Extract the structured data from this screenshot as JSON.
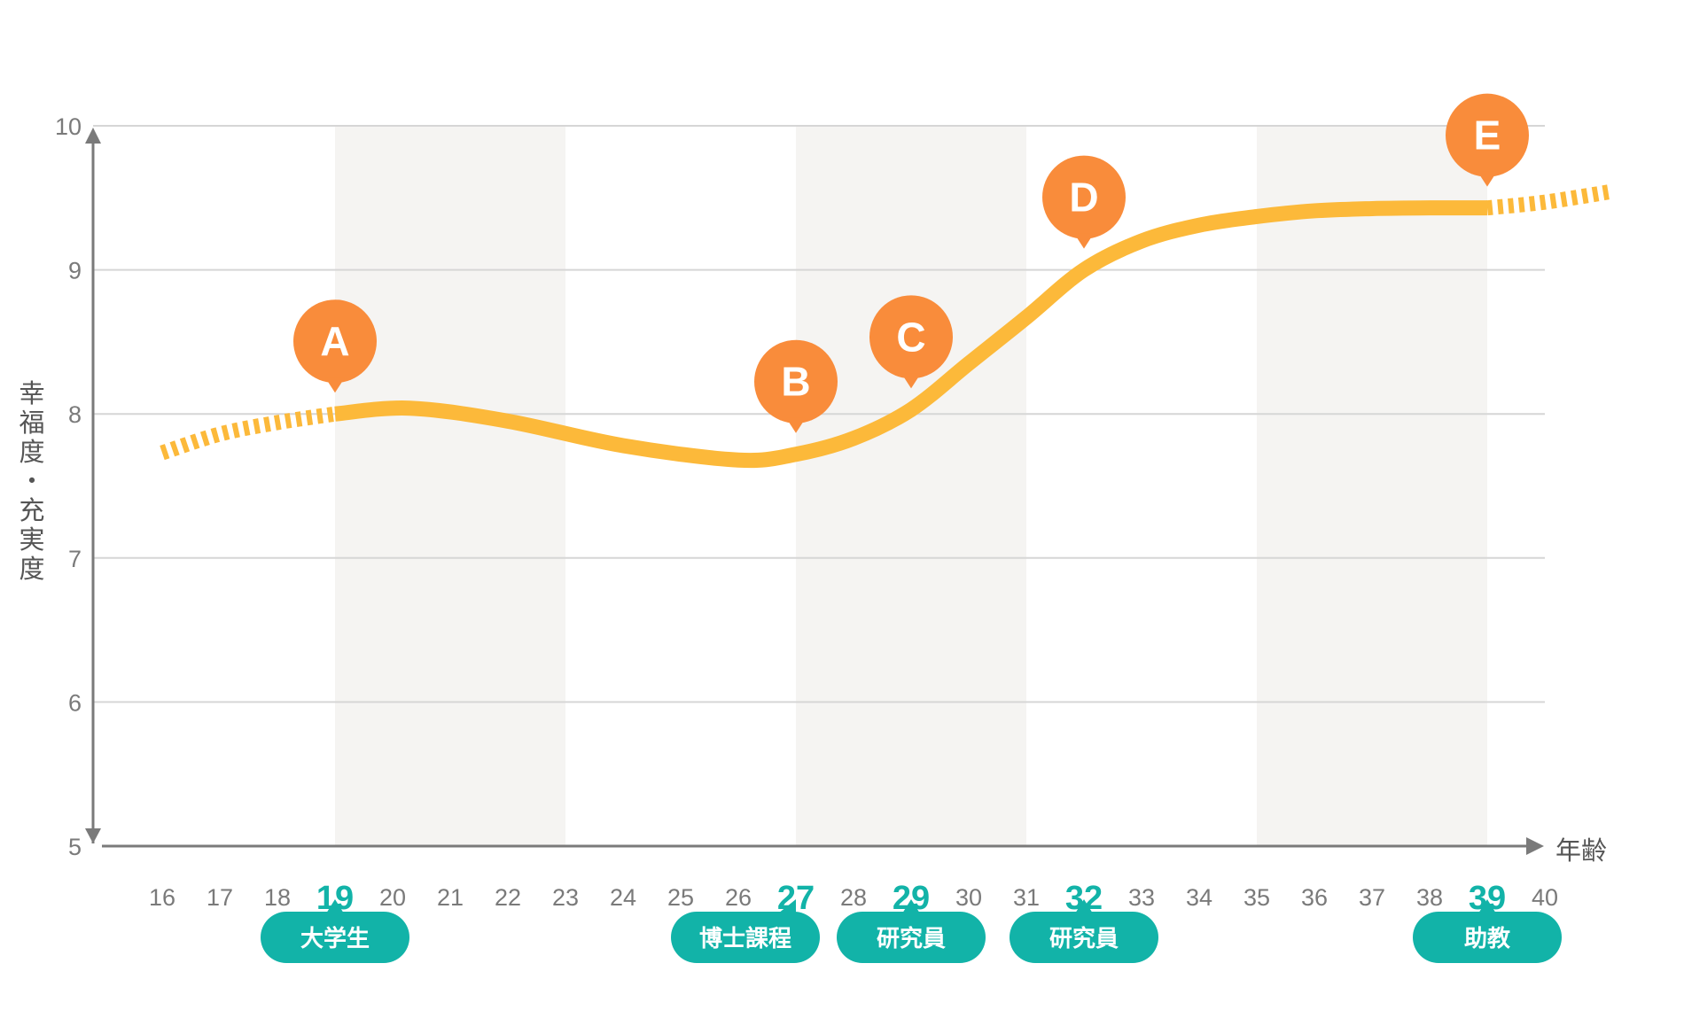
{
  "chart_data": {
    "type": "line",
    "xlabel": "年齢",
    "ylabel": "幸福度・充実度",
    "xlim": [
      16,
      40
    ],
    "ylim": [
      5,
      10
    ],
    "x_ticks": [
      16,
      17,
      18,
      19,
      20,
      21,
      22,
      23,
      24,
      25,
      26,
      27,
      28,
      29,
      30,
      31,
      32,
      33,
      34,
      35,
      36,
      37,
      38,
      39,
      40
    ],
    "y_ticks": [
      5,
      6,
      7,
      8,
      9,
      10
    ],
    "highlighted_ages": [
      19,
      27,
      29,
      32,
      39
    ],
    "shaded_age_bands": [
      [
        19,
        23
      ],
      [
        27,
        31
      ],
      [
        35,
        39
      ]
    ],
    "series": [
      {
        "solid_points": [
          {
            "x": 19,
            "y": 8.0
          },
          {
            "x": 20.3,
            "y": 8.04
          },
          {
            "x": 22,
            "y": 7.95
          },
          {
            "x": 24,
            "y": 7.78
          },
          {
            "x": 26,
            "y": 7.68
          },
          {
            "x": 27,
            "y": 7.72
          },
          {
            "x": 28,
            "y": 7.83
          },
          {
            "x": 29,
            "y": 8.03
          },
          {
            "x": 30,
            "y": 8.35
          },
          {
            "x": 31,
            "y": 8.67
          },
          {
            "x": 32,
            "y": 9.0
          },
          {
            "x": 33,
            "y": 9.2
          },
          {
            "x": 34,
            "y": 9.31
          },
          {
            "x": 35,
            "y": 9.37
          },
          {
            "x": 36,
            "y": 9.41
          },
          {
            "x": 37,
            "y": 9.425
          },
          {
            "x": 38,
            "y": 9.43
          },
          {
            "x": 39,
            "y": 9.43
          }
        ],
        "dashed_before": [
          {
            "x": 16,
            "y": 7.73
          },
          {
            "x": 17,
            "y": 7.86
          },
          {
            "x": 18,
            "y": 7.94
          },
          {
            "x": 19,
            "y": 8.0
          }
        ],
        "dashed_after": [
          {
            "x": 39,
            "y": 9.43
          },
          {
            "x": 40,
            "y": 9.47
          },
          {
            "x": 41.1,
            "y": 9.54
          }
        ]
      }
    ],
    "markers": [
      {
        "letter": "A",
        "x": 19,
        "y": 8.0
      },
      {
        "letter": "B",
        "x": 27,
        "y": 7.72
      },
      {
        "letter": "C",
        "x": 29,
        "y": 8.03
      },
      {
        "letter": "D",
        "x": 32,
        "y": 9.0
      },
      {
        "letter": "E",
        "x": 39,
        "y": 9.43
      }
    ],
    "tags": [
      {
        "text": "大学生",
        "x": 19
      },
      {
        "text": "博士課程",
        "x": 27
      },
      {
        "text": "研究員",
        "x": 29
      },
      {
        "text": "研究員",
        "x": 32
      },
      {
        "text": "助教",
        "x": 39
      }
    ]
  },
  "colors": {
    "line": "#fcb93a",
    "marker": "#f98c3b",
    "tag": "#12b3a8",
    "highlight_tick": "#12b3a8",
    "band": "#f5f4f2",
    "grid": "#d6d6d6",
    "axis": "#7a7a7a"
  }
}
